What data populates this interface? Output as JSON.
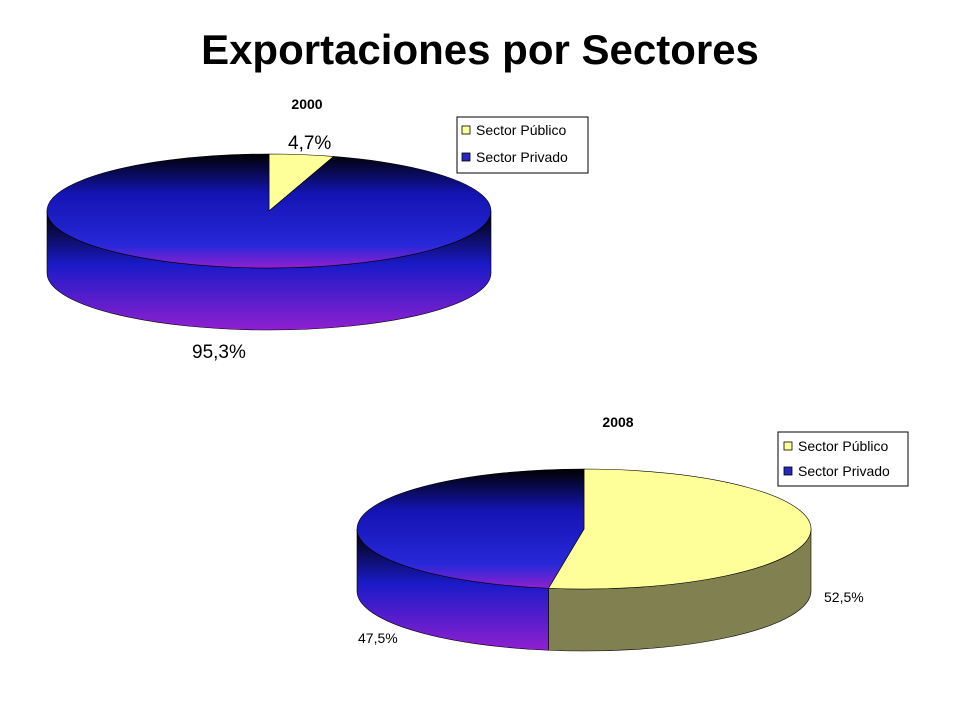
{
  "slide": {
    "title": "Exportaciones por Sectores"
  },
  "colors": {
    "public_top": "#FFFF99",
    "public_side": "#808050",
    "private_dark": "#000000",
    "private_mid": "#1A1AC8",
    "private_light": "#9020D0"
  },
  "chart_data": [
    {
      "type": "pie",
      "title": "2000",
      "legend_position": "top-right",
      "series": [
        {
          "name": "Sector Público",
          "value": 4.7,
          "label": "4,7%"
        },
        {
          "name": "Sector Privado",
          "value": 95.3,
          "label": "95,3%"
        }
      ]
    },
    {
      "type": "pie",
      "title": "2008",
      "legend_position": "top-right",
      "series": [
        {
          "name": "Sector Público",
          "value": 52.5,
          "label": "52,5%"
        },
        {
          "name": "Sector Privado",
          "value": 47.5,
          "label": "47,5%"
        }
      ]
    }
  ]
}
